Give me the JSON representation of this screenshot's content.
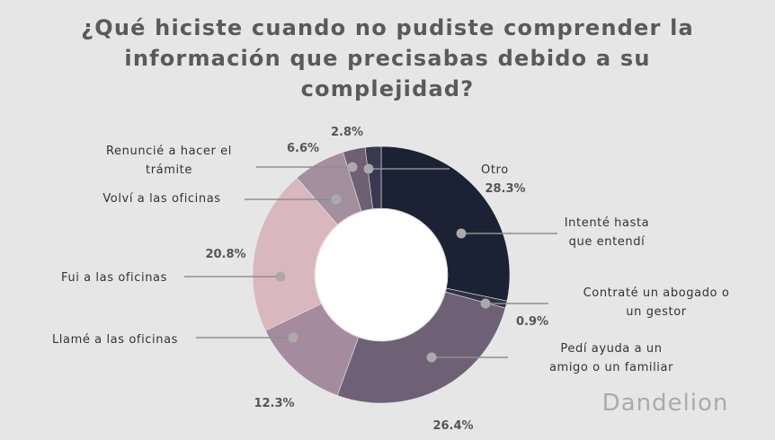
{
  "chart_data": {
    "type": "pie",
    "title": "¿Qué hiciste cuando no pudiste comprender la información que precisabas debido a su complejidad?",
    "donut": true,
    "slices": [
      {
        "name": "Otro",
        "label_lines": [
          "Otro"
        ],
        "value": 28.3,
        "pct_label": "28.3%",
        "color": "#1b2233"
      },
      {
        "name": "Intenté hasta que entendí",
        "label_lines": [
          "Intenté hasta",
          "que entendí"
        ],
        "value": 0.9,
        "pct_label": "0.9%",
        "color": "#2e3246"
      },
      {
        "name": "Contraté un abogado o un gestor",
        "label_lines": [
          "Contraté un abogado o",
          "un gestor"
        ],
        "value": 26.4,
        "pct_label": "26.4%",
        "color": "#6e6175"
      },
      {
        "name": "Pedí ayuda a un amigo o un familiar",
        "label_lines": [
          "Pedí ayuda a un",
          "amigo o un familiar"
        ],
        "value": 12.3,
        "pct_label": "12.3%",
        "color": "#a48c9e"
      },
      {
        "name": "Llamé a las oficinas",
        "label_lines": [
          "Llamé a las oficinas"
        ],
        "value": 20.8,
        "pct_label": "20.8%",
        "color": "#d9b7bf"
      },
      {
        "name": "Fui a las oficinas",
        "label_lines": [
          "Fui a las oficinas"
        ],
        "value": 6.6,
        "pct_label": "6.6%",
        "color": "#a38f9d"
      },
      {
        "name": "Volví a las oficinas",
        "label_lines": [
          "Volví a las oficinas"
        ],
        "value": 2.8,
        "pct_label": "2.8%",
        "color": "#6e5f73"
      },
      {
        "name": "Renuncié a hacer el trámite",
        "label_lines": [
          "Renuncié a hacer el",
          "trámite"
        ],
        "value": 2.0,
        "pct_label": "",
        "color": "#3a3850"
      }
    ]
  },
  "logo": {
    "text": "Dandelion"
  }
}
